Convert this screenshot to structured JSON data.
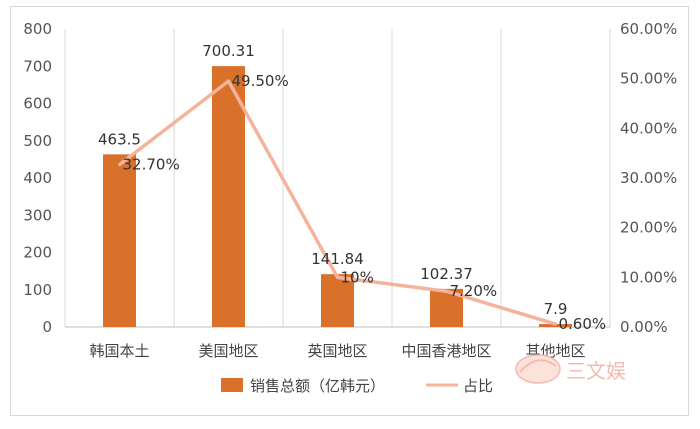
{
  "chart_data": {
    "type": "bar",
    "categories": [
      "韩国本土",
      "美国地区",
      "英国地区",
      "中国香港地区",
      "其他地区"
    ],
    "series": [
      {
        "name": "销售总额（亿韩元）",
        "type": "bar",
        "axis": "left",
        "values": [
          463.5,
          700.31,
          141.84,
          102.37,
          7.9
        ],
        "labels": [
          "463.5",
          "700.31",
          "141.84",
          "102.37",
          "7.9"
        ],
        "color": "#d9712b"
      },
      {
        "name": "占比",
        "type": "line",
        "axis": "right",
        "values": [
          0.327,
          0.495,
          0.1,
          0.072,
          0.006
        ],
        "labels": [
          "32.70%",
          "49.50%",
          "10%",
          "7.20%",
          "0.60%"
        ],
        "color": "#f4b49b"
      }
    ],
    "y_left": {
      "min": 0,
      "max": 800,
      "ticks": [
        "0",
        "100",
        "200",
        "300",
        "400",
        "500",
        "600",
        "700",
        "800"
      ]
    },
    "y_right": {
      "min": 0,
      "max": 0.6,
      "ticks": [
        "0.00%",
        "10.00%",
        "20.00%",
        "30.00%",
        "40.00%",
        "50.00%",
        "60.00%"
      ]
    },
    "grid": "vertical",
    "legend": "bottom"
  },
  "watermark": {
    "text": "三文娱"
  }
}
